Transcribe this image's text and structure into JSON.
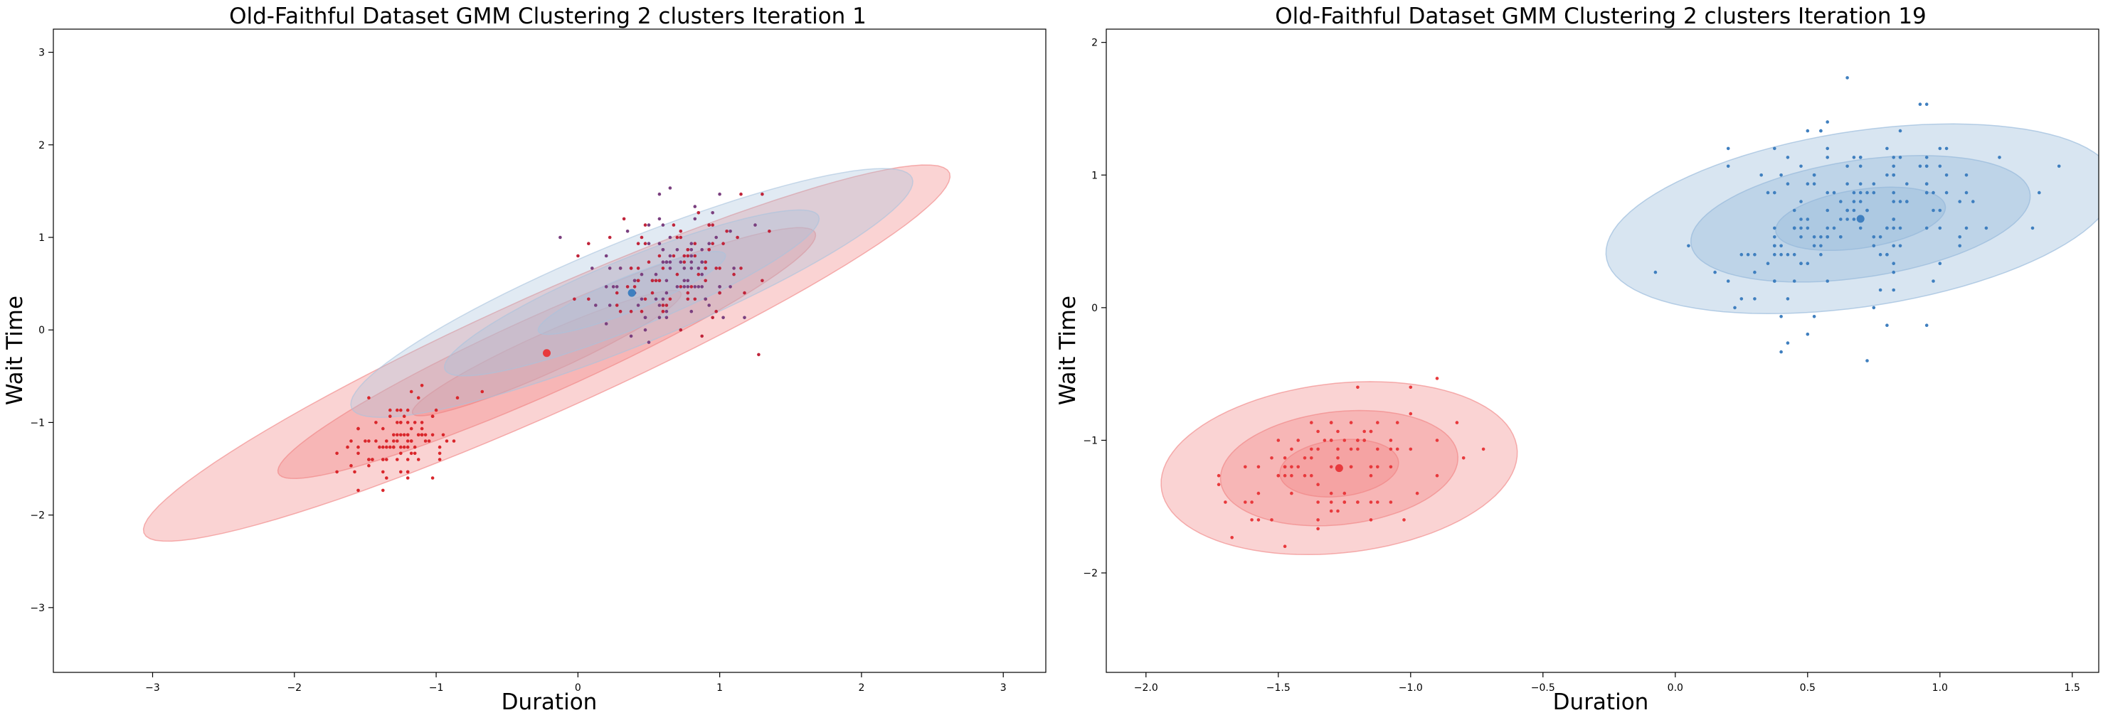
{
  "colors": {
    "cluster_red": "#e8393c",
    "cluster_red_fill": "#f08080",
    "cluster_blue": "#3f7fbf",
    "cluster_blue_fill": "#8fb4d8",
    "cluster_blue_fill_iter1": "#a9c3de"
  },
  "chart_data": [
    {
      "type": "scatter",
      "title": "Old-Faithful Dataset GMM Clustering 2 clusters Iteration 1",
      "xlabel": "Duration",
      "ylabel": "Wait Time",
      "xlim": [
        -3.7,
        3.3
      ],
      "ylim": [
        -3.7,
        3.25
      ],
      "xticks": [
        -3,
        -2,
        -1,
        0,
        1,
        2,
        3
      ],
      "yticks": [
        -3,
        -2,
        -1,
        0,
        1,
        2,
        3
      ],
      "grid": false,
      "components": [
        {
          "color": "#e8393c",
          "fill": "#f08080",
          "mean": [
            -0.22,
            -0.25
          ],
          "sigma_axes": [
            1.15,
            0.19
          ],
          "angle_deg": 35,
          "levels": [
            1,
            2,
            3
          ]
        },
        {
          "color": "#3f7fbf",
          "fill": "#a9c3de",
          "mean": [
            0.38,
            0.4
          ],
          "sigma_axes": [
            0.78,
            0.17
          ],
          "angle_deg": 33,
          "levels": [
            1,
            2,
            3
          ]
        }
      ],
      "points": {
        "count": 272,
        "color_mode": "mixed red/purple"
      }
    },
    {
      "type": "scatter",
      "title": "Old-Faithful Dataset GMM Clustering 2 clusters Iteration 19",
      "xlabel": "Duration",
      "ylabel": "Wait Time",
      "xlim": [
        -2.15,
        1.6
      ],
      "ylim": [
        -2.75,
        2.1
      ],
      "xticks": [
        -2.0,
        -1.5,
        -1.0,
        -0.5,
        0.0,
        0.5,
        1.0,
        1.5
      ],
      "yticks": [
        -2,
        -1,
        0,
        1,
        2
      ],
      "grid": false,
      "components": [
        {
          "color": "#e8393c",
          "fill": "#f08080",
          "mean": [
            -1.27,
            -1.21
          ],
          "sigma_axes": [
            0.24,
            0.2
          ],
          "angle_deg": 40,
          "levels": [
            1,
            2,
            3
          ]
        },
        {
          "color": "#3f7fbf",
          "fill": "#8fb4d8",
          "mean": [
            0.7,
            0.67
          ],
          "sigma_axes": [
            0.34,
            0.21
          ],
          "angle_deg": 25,
          "levels": [
            1,
            2,
            3
          ]
        }
      ],
      "points": {
        "count": 272,
        "color_mode": "by cluster"
      }
    }
  ]
}
